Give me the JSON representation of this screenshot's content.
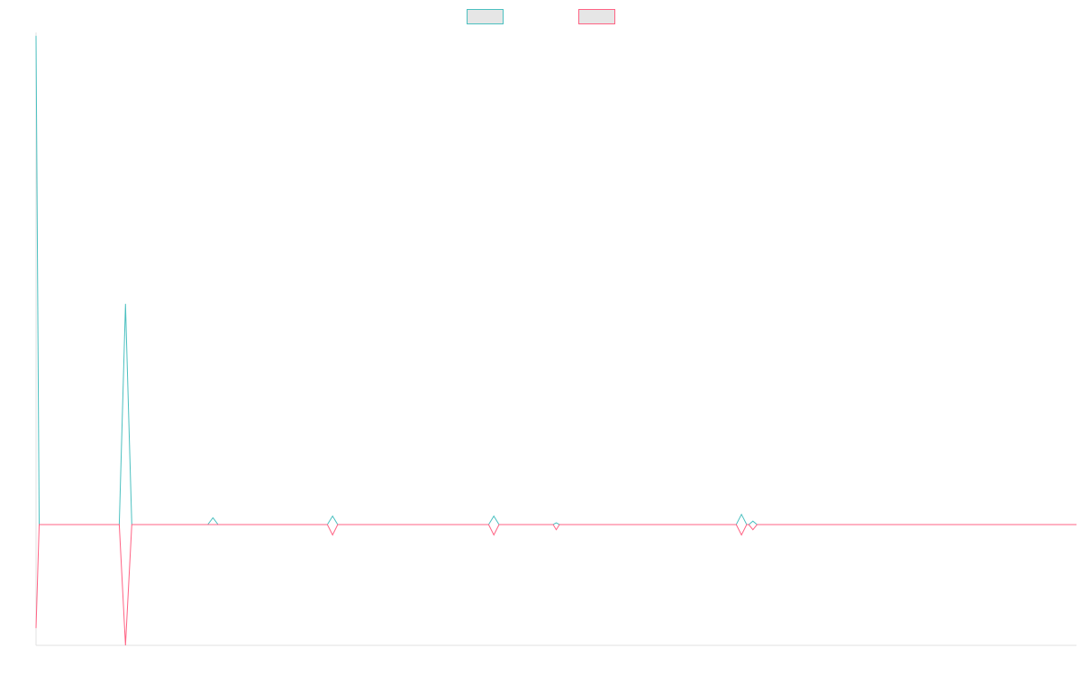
{
  "chart_data": {
    "type": "line",
    "title": "",
    "xlabel": "",
    "ylabel": "",
    "grid": false,
    "legend_position": "top-center",
    "x_range": [
      0,
      100
    ],
    "y_range": [
      -70,
      290
    ],
    "series": [
      {
        "name": "",
        "color": "#4bc0c0",
        "legend_fill": "#e6e6e6",
        "points": [
          [
            0,
            288
          ],
          [
            0.3,
            0
          ],
          [
            8,
            0
          ],
          [
            8.6,
            130
          ],
          [
            9.2,
            0
          ],
          [
            16.5,
            0
          ],
          [
            17,
            4
          ],
          [
            17.5,
            0
          ],
          [
            28,
            0
          ],
          [
            28.5,
            5
          ],
          [
            29,
            0
          ],
          [
            43.5,
            0
          ],
          [
            44,
            5
          ],
          [
            44.5,
            0
          ],
          [
            49.7,
            0
          ],
          [
            50,
            1
          ],
          [
            50.3,
            0
          ],
          [
            67.3,
            0
          ],
          [
            67.8,
            6
          ],
          [
            68.3,
            0
          ],
          [
            68.5,
            0
          ],
          [
            68.9,
            2
          ],
          [
            69.3,
            0
          ],
          [
            100,
            0
          ]
        ]
      },
      {
        "name": "",
        "color": "#ff6384",
        "legend_fill": "#e6e6e6",
        "points": [
          [
            0,
            -60
          ],
          [
            0.3,
            0
          ],
          [
            8,
            0
          ],
          [
            8.6,
            -70
          ],
          [
            9.2,
            0
          ],
          [
            28,
            0
          ],
          [
            28.5,
            -6
          ],
          [
            29,
            0
          ],
          [
            43.5,
            0
          ],
          [
            44,
            -6
          ],
          [
            44.5,
            0
          ],
          [
            49.7,
            0
          ],
          [
            50,
            -3
          ],
          [
            50.3,
            0
          ],
          [
            67.3,
            0
          ],
          [
            67.8,
            -6
          ],
          [
            68.3,
            0
          ],
          [
            68.5,
            0
          ],
          [
            68.9,
            -3
          ],
          [
            69.3,
            0
          ],
          [
            100,
            0
          ]
        ]
      }
    ]
  }
}
